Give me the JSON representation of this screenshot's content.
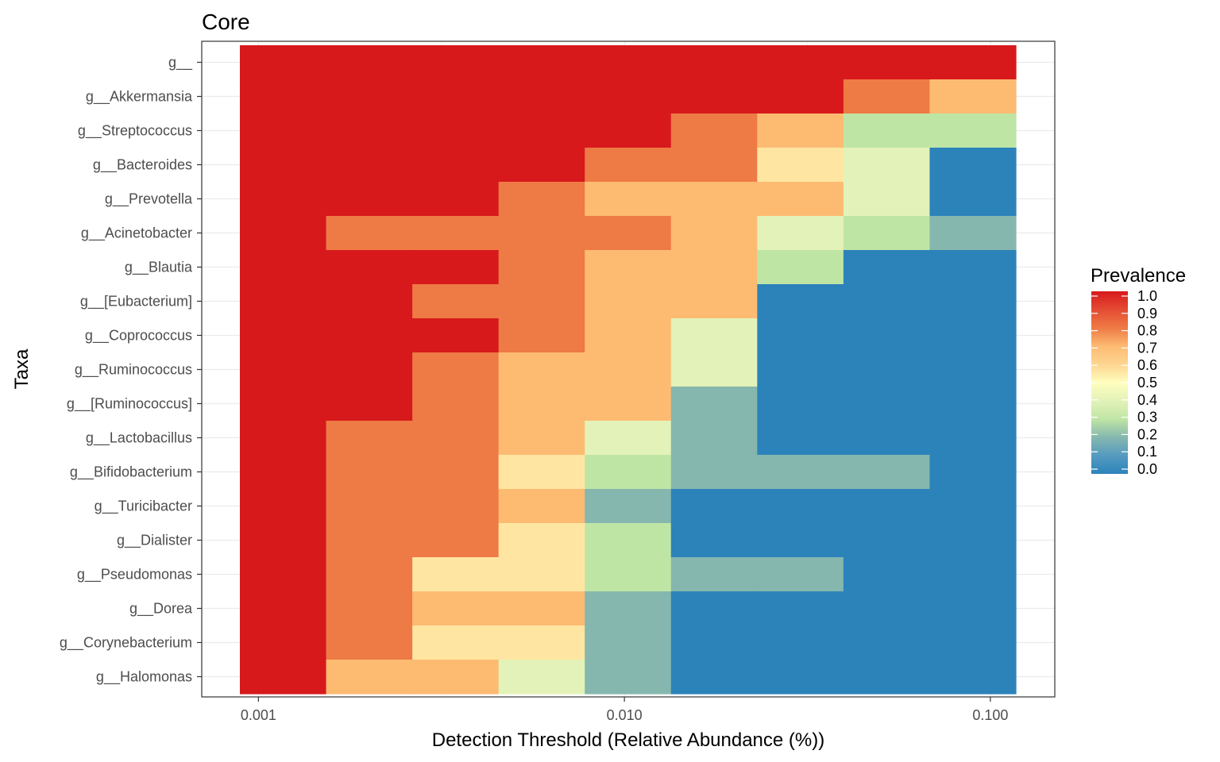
{
  "chart_data": {
    "type": "heatmap",
    "title": "Core",
    "xlabel": "Detection Threshold (Relative Abundance (%))",
    "ylabel": "Taxa",
    "x_scale": "log",
    "x_ticks": [
      "0.001",
      "0.010",
      "0.100"
    ],
    "x_tick_values": [
      0.001,
      0.01,
      0.1
    ],
    "x_range": [
      0.0007,
      0.15
    ],
    "x_thresholds": [
      0.001,
      0.0018,
      0.0032,
      0.0056,
      0.01,
      0.018,
      0.032,
      0.056,
      0.1
    ],
    "grid": true,
    "taxa": [
      "g__",
      "g__Akkermansia",
      "g__Streptococcus",
      "g__Bacteroides",
      "g__Prevotella",
      "g__Acinetobacter",
      "g__Blautia",
      "g__[Eubacterium]",
      "g__Coprococcus",
      "g__Ruminococcus",
      "g__[Ruminococcus]",
      "g__Lactobacillus",
      "g__Bifidobacterium",
      "g__Turicibacter",
      "g__Dialister",
      "g__Pseudomonas",
      "g__Dorea",
      "g__Corynebacterium",
      "g__Halomonas"
    ],
    "prevalence": [
      [
        1.0,
        1.0,
        1.0,
        1.0,
        1.0,
        1.0,
        1.0,
        1.0,
        1.0
      ],
      [
        1.0,
        1.0,
        1.0,
        1.0,
        1.0,
        1.0,
        1.0,
        0.8,
        0.7
      ],
      [
        1.0,
        1.0,
        1.0,
        1.0,
        1.0,
        0.8,
        0.7,
        0.3,
        0.3
      ],
      [
        1.0,
        1.0,
        1.0,
        1.0,
        0.8,
        0.8,
        0.5,
        0.4,
        0.0
      ],
      [
        1.0,
        1.0,
        1.0,
        0.8,
        0.7,
        0.7,
        0.7,
        0.4,
        0.0
      ],
      [
        1.0,
        0.8,
        0.8,
        0.8,
        0.8,
        0.7,
        0.4,
        0.3,
        0.2
      ],
      [
        1.0,
        1.0,
        1.0,
        0.8,
        0.7,
        0.7,
        0.3,
        0.0,
        0.0
      ],
      [
        1.0,
        1.0,
        0.8,
        0.8,
        0.7,
        0.7,
        0.0,
        0.0,
        0.0
      ],
      [
        1.0,
        1.0,
        1.0,
        0.8,
        0.7,
        0.4,
        0.0,
        0.0,
        0.0
      ],
      [
        1.0,
        1.0,
        0.8,
        0.7,
        0.7,
        0.4,
        0.0,
        0.0,
        0.0
      ],
      [
        1.0,
        1.0,
        0.8,
        0.7,
        0.7,
        0.2,
        0.0,
        0.0,
        0.0
      ],
      [
        1.0,
        0.8,
        0.8,
        0.7,
        0.4,
        0.2,
        0.0,
        0.0,
        0.0
      ],
      [
        1.0,
        0.8,
        0.8,
        0.5,
        0.3,
        0.2,
        0.2,
        0.2,
        0.0
      ],
      [
        1.0,
        0.8,
        0.8,
        0.7,
        0.2,
        0.0,
        0.0,
        0.0,
        0.0
      ],
      [
        1.0,
        0.8,
        0.8,
        0.5,
        0.3,
        0.0,
        0.0,
        0.0,
        0.0
      ],
      [
        1.0,
        0.8,
        0.5,
        0.5,
        0.3,
        0.2,
        0.2,
        0.0,
        0.0
      ],
      [
        1.0,
        0.8,
        0.7,
        0.7,
        0.2,
        0.0,
        0.0,
        0.0,
        0.0
      ],
      [
        1.0,
        0.8,
        0.5,
        0.5,
        0.2,
        0.0,
        0.0,
        0.0,
        0.0
      ],
      [
        1.0,
        0.7,
        0.7,
        0.4,
        0.2,
        0.0,
        0.0,
        0.0,
        0.0
      ]
    ],
    "legend": {
      "title": "Prevalence",
      "position": "right",
      "labels": [
        "1.0",
        "0.9",
        "0.8",
        "0.7",
        "0.6",
        "0.5",
        "0.4",
        "0.3",
        "0.2",
        "0.1",
        "0.0"
      ],
      "values": [
        1.0,
        0.9,
        0.8,
        0.7,
        0.6,
        0.5,
        0.4,
        0.3,
        0.2,
        0.1,
        0.0
      ]
    },
    "palette": {
      "1.0": "#d7191c",
      "0.9": "#e44c33",
      "0.8": "#ee7a45",
      "0.7": "#fdbb72",
      "0.6": "#fdd590",
      "0.5": "#fee6a2",
      "0.4": "#e3f2b8",
      "0.3": "#bfe5a5",
      "0.2": "#85b7ae",
      "0.1": "#559bc0",
      "0.0": "#2c83ba"
    }
  }
}
